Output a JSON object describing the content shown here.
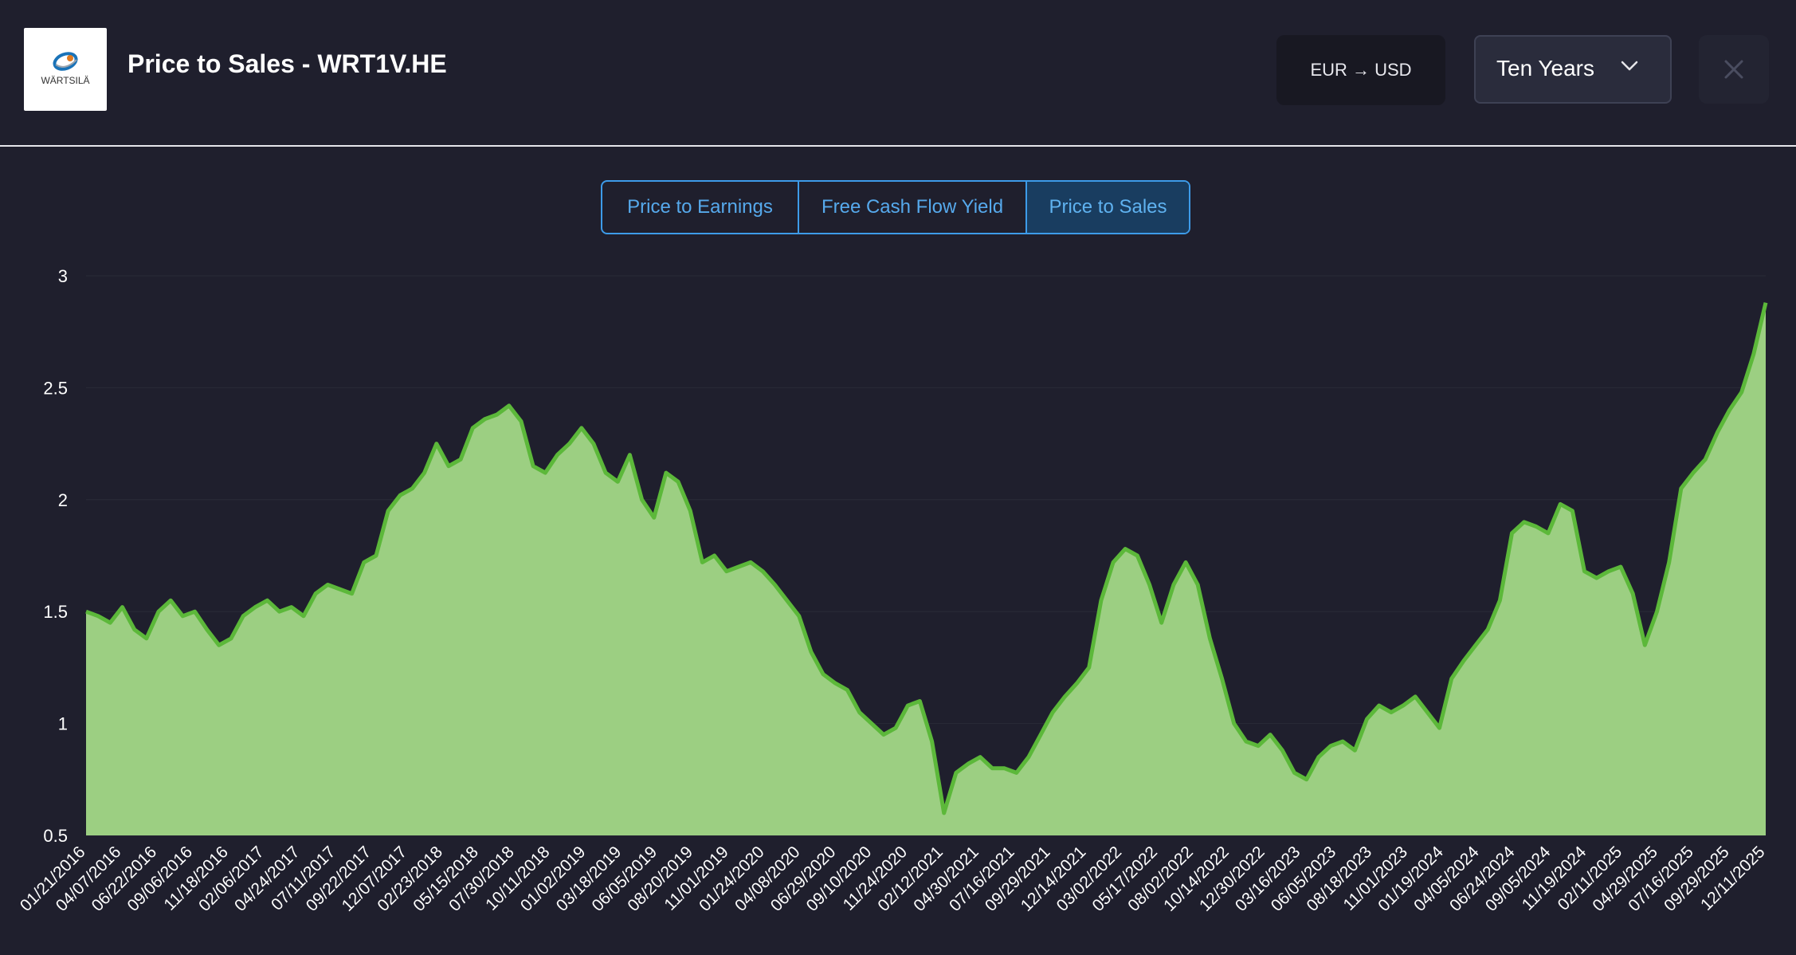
{
  "header": {
    "title": "Price to Sales - WRT1V.HE",
    "logo_text": "WÄRTSILÄ",
    "currency_label": "EUR → USD",
    "period_label": "Ten Years",
    "icons": {
      "dropdown": "chevron-down-icon",
      "close": "close-icon"
    }
  },
  "tabs": [
    {
      "label": "Price to Earnings",
      "active": false
    },
    {
      "label": "Free Cash Flow Yield",
      "active": false
    },
    {
      "label": "Price to Sales",
      "active": true
    }
  ],
  "colors": {
    "background": "#1f1f2d",
    "area_fill": "#9ccf82",
    "area_line": "#5cb83a",
    "accent": "#3d9be9",
    "tab_active_bg": "#193d60"
  },
  "chart_data": {
    "type": "area",
    "title": "",
    "xlabel": "",
    "ylabel": "",
    "ylim": [
      0.5,
      3
    ],
    "yticks": [
      0.5,
      1,
      1.5,
      2,
      2.5,
      3
    ],
    "ytick_labels": [
      "0.5",
      "1",
      "1.5",
      "2",
      "2.5",
      "3"
    ],
    "grid": true,
    "xtick_labels": [
      "01/21/2016",
      "04/07/2016",
      "06/22/2016",
      "09/06/2016",
      "11/18/2016",
      "02/06/2017",
      "04/24/2017",
      "07/11/2017",
      "09/22/2017",
      "12/07/2017",
      "02/23/2018",
      "05/15/2018",
      "07/30/2018",
      "10/11/2018",
      "01/02/2019",
      "03/18/2019",
      "06/05/2019",
      "08/20/2019",
      "11/01/2019",
      "01/24/2020",
      "04/08/2020",
      "06/29/2020",
      "09/10/2020",
      "11/24/2020",
      "02/12/2021",
      "04/30/2021",
      "07/16/2021",
      "09/29/2021",
      "12/14/2021",
      "03/02/2022",
      "05/17/2022",
      "08/02/2022",
      "10/14/2022",
      "12/30/2022",
      "03/16/2023",
      "06/05/2023",
      "08/18/2023",
      "11/01/2023",
      "01/19/2024",
      "04/05/2024",
      "06/24/2024",
      "09/05/2024",
      "11/19/2024",
      "02/11/2025",
      "04/29/2025",
      "07/16/2025",
      "09/29/2025",
      "12/11/2025"
    ],
    "values": [
      1.5,
      1.48,
      1.45,
      1.52,
      1.42,
      1.38,
      1.5,
      1.55,
      1.48,
      1.5,
      1.42,
      1.35,
      1.38,
      1.48,
      1.52,
      1.55,
      1.5,
      1.52,
      1.48,
      1.58,
      1.62,
      1.6,
      1.58,
      1.72,
      1.75,
      1.95,
      2.02,
      2.05,
      2.12,
      2.25,
      2.15,
      2.18,
      2.32,
      2.36,
      2.38,
      2.42,
      2.35,
      2.15,
      2.12,
      2.2,
      2.25,
      2.32,
      2.25,
      2.12,
      2.08,
      2.2,
      2.0,
      1.92,
      2.12,
      2.08,
      1.95,
      1.72,
      1.75,
      1.68,
      1.7,
      1.72,
      1.68,
      1.62,
      1.55,
      1.48,
      1.32,
      1.22,
      1.18,
      1.15,
      1.05,
      1.0,
      0.95,
      0.98,
      1.08,
      1.1,
      0.92,
      0.6,
      0.78,
      0.82,
      0.85,
      0.8,
      0.8,
      0.78,
      0.85,
      0.95,
      1.05,
      1.12,
      1.18,
      1.25,
      1.55,
      1.72,
      1.78,
      1.75,
      1.62,
      1.45,
      1.62,
      1.72,
      1.62,
      1.38,
      1.2,
      1.0,
      0.92,
      0.9,
      0.95,
      0.88,
      0.78,
      0.75,
      0.85,
      0.9,
      0.92,
      0.88,
      1.02,
      1.08,
      1.05,
      1.08,
      1.12,
      1.05,
      0.98,
      1.2,
      1.28,
      1.35,
      1.42,
      1.55,
      1.85,
      1.9,
      1.88,
      1.85,
      1.98,
      1.95,
      1.68,
      1.65,
      1.68,
      1.7,
      1.58,
      1.35,
      1.5,
      1.72,
      2.05,
      2.12,
      2.18,
      2.3,
      2.4,
      2.48,
      2.65,
      2.88
    ]
  }
}
